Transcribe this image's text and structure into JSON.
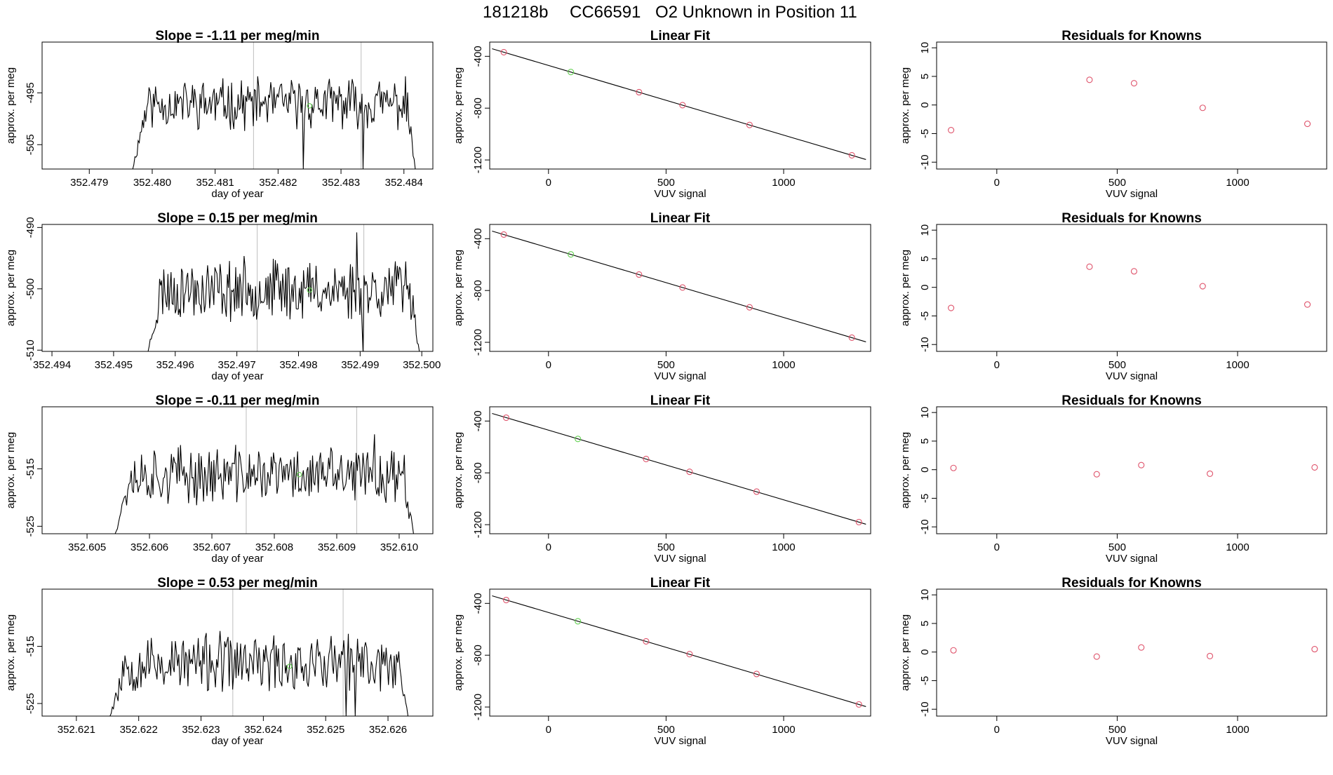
{
  "figure": {
    "title_parts": [
      "181218b",
      "CC66591",
      "O2 Unknown in Position  11"
    ]
  },
  "colors": {
    "trace": "#000000",
    "marker_red": "#DF536B",
    "marker_green": "#61D04F",
    "vline": "#BEBEBE",
    "frame": "#000000"
  },
  "chart_data": [
    {
      "type": "line",
      "row": 0,
      "col": 0,
      "title": "Slope =  -1.11  per meg/min",
      "xlabel": "day of year",
      "ylabel": "approx. per meg",
      "xlim": [
        352.47825,
        352.48446
      ],
      "ylim": [
        -509.7,
        -485.2
      ],
      "xticks": [
        352.479,
        352.48,
        352.481,
        352.482,
        352.483,
        352.484
      ],
      "xtick_labels": [
        "352.479",
        "352.480",
        "352.481",
        "352.482",
        "352.483",
        "352.484"
      ],
      "yticks": [
        -505,
        -495
      ],
      "ytick_labels": [
        "-505",
        "-495"
      ],
      "trace_x_range": [
        352.47969,
        352.48418
      ],
      "trace_base": -497.1,
      "trace_amp": 2.5,
      "trace_seed": 11,
      "vlines": [
        352.48161,
        352.48332
      ],
      "green_point": {
        "x": 352.4825,
        "y": -497.5
      },
      "dips": [
        {
          "x": 352.48175,
          "y": -497.6
        },
        {
          "x": 352.4824,
          "y": -509.7
        },
        {
          "x": 352.48335,
          "y": -509.7
        }
      ]
    },
    {
      "type": "scatter",
      "row": 0,
      "col": 1,
      "title": "Linear Fit",
      "xlabel": "VUV signal",
      "ylabel": "approx. per meg",
      "xlim": [
        -250,
        1370
      ],
      "ylim": [
        -1270,
        -290
      ],
      "xticks": [
        0,
        500,
        1000
      ],
      "xtick_labels": [
        "0",
        "500",
        "1000"
      ],
      "yticks": [
        -1200,
        -800,
        -400
      ],
      "ytick_labels": [
        "-1200",
        "-800",
        "-400"
      ],
      "fit_line": {
        "slope": -0.5378,
        "intercept": -470.4,
        "x_range": [
          -240,
          1350
        ]
      },
      "points_red": [
        [
          -190,
          -368
        ],
        [
          385,
          -677
        ],
        [
          570,
          -777
        ],
        [
          855,
          -930
        ],
        [
          1290,
          -1164
        ]
      ],
      "points_green": [
        [
          95,
          -521
        ]
      ]
    },
    {
      "type": "scatter",
      "row": 0,
      "col": 2,
      "title": "Residuals for Knowns",
      "xlabel": "VUV signal",
      "ylabel": "approx. per meg",
      "xlim": [
        -250,
        1370
      ],
      "ylim": [
        -11.2,
        11
      ],
      "xticks": [
        0,
        500,
        1000
      ],
      "xtick_labels": [
        "0",
        "500",
        "1000"
      ],
      "yticks": [
        -10,
        -5,
        0,
        5,
        10
      ],
      "ytick_labels": [
        "-10",
        "-5",
        "0",
        "5",
        "10"
      ],
      "points_red": [
        [
          -190,
          -4.4
        ],
        [
          385,
          4.4
        ],
        [
          570,
          3.8
        ],
        [
          855,
          -0.5
        ],
        [
          1290,
          -3.3
        ]
      ]
    },
    {
      "type": "line",
      "row": 1,
      "col": 0,
      "title": "Slope =  0.15  per meg/min",
      "xlabel": "day of year",
      "ylabel": "approx. per meg",
      "xlim": [
        352.49384,
        352.50018
      ],
      "ylim": [
        -510.2,
        -489.5
      ],
      "xticks": [
        352.494,
        352.495,
        352.496,
        352.497,
        352.498,
        352.499,
        352.5
      ],
      "xtick_labels": [
        "352.494",
        "352.495",
        "352.496",
        "352.497",
        "352.498",
        "352.499",
        "352.500"
      ],
      "yticks": [
        -510,
        -500,
        -490
      ],
      "ytick_labels": [
        "-510",
        "-500",
        "-490"
      ],
      "trace_x_range": [
        352.49556,
        352.49996
      ],
      "trace_base": -500.1,
      "trace_amp": 2.6,
      "trace_seed": 23,
      "vlines": [
        352.49733,
        352.49906
      ],
      "green_point": {
        "x": 352.49818,
        "y": -500.2
      },
      "dips": [
        {
          "x": 352.49895,
          "y": -490.8
        },
        {
          "x": 352.49905,
          "y": -510.2
        }
      ]
    },
    {
      "type": "scatter",
      "row": 1,
      "col": 1,
      "title": "Linear Fit",
      "xlabel": "VUV signal",
      "ylabel": "approx. per meg",
      "xlim": [
        -250,
        1370
      ],
      "ylim": [
        -1270,
        -290
      ],
      "xticks": [
        0,
        500,
        1000
      ],
      "xtick_labels": [
        "0",
        "500",
        "1000"
      ],
      "yticks": [
        -1200,
        -800,
        -400
      ],
      "ytick_labels": [
        "-1200",
        "-800",
        "-400"
      ],
      "fit_line": {
        "slope": -0.5378,
        "intercept": -470.4,
        "x_range": [
          -240,
          1350
        ]
      },
      "points_red": [
        [
          -190,
          -368
        ],
        [
          385,
          -677
        ],
        [
          570,
          -777
        ],
        [
          855,
          -930
        ],
        [
          1290,
          -1164
        ]
      ],
      "points_green": [
        [
          95,
          -521
        ]
      ]
    },
    {
      "type": "scatter",
      "row": 1,
      "col": 2,
      "title": "Residuals for Knowns",
      "xlabel": "VUV signal",
      "ylabel": "approx. per meg",
      "xlim": [
        -250,
        1370
      ],
      "ylim": [
        -11.2,
        11
      ],
      "xticks": [
        0,
        500,
        1000
      ],
      "xtick_labels": [
        "0",
        "500",
        "1000"
      ],
      "yticks": [
        -10,
        -5,
        0,
        5,
        10
      ],
      "ytick_labels": [
        "-10",
        "-5",
        "0",
        "5",
        "10"
      ],
      "points_red": [
        [
          -190,
          -3.6
        ],
        [
          385,
          3.6
        ],
        [
          570,
          2.8
        ],
        [
          855,
          0.2
        ],
        [
          1290,
          -3.0
        ]
      ]
    },
    {
      "type": "line",
      "row": 2,
      "col": 0,
      "title": "Slope =  -0.11  per meg/min",
      "xlabel": "day of year",
      "ylabel": "approx. per meg",
      "xlim": [
        352.60428,
        352.61054
      ],
      "ylim": [
        -526.3,
        -504.2
      ],
      "xticks": [
        352.605,
        352.606,
        352.607,
        352.608,
        352.609,
        352.61
      ],
      "xtick_labels": [
        "352.605",
        "352.606",
        "352.607",
        "352.608",
        "352.609",
        "352.610"
      ],
      "yticks": [
        -525,
        -515
      ],
      "ytick_labels": [
        "-525",
        "-515"
      ],
      "trace_x_range": [
        352.60545,
        352.61023
      ],
      "trace_base": -516.1,
      "trace_amp": 2.6,
      "trace_seed": 37,
      "vlines": [
        352.60755,
        352.60932
      ],
      "green_point": {
        "x": 352.6084,
        "y": -516.0
      },
      "dips": [
        {
          "x": 352.6093,
          "y": -520.5
        },
        {
          "x": 352.6096,
          "y": -509.0
        }
      ]
    },
    {
      "type": "scatter",
      "row": 2,
      "col": 1,
      "title": "Linear Fit",
      "xlabel": "VUV signal",
      "ylabel": "approx. per meg",
      "xlim": [
        -250,
        1370
      ],
      "ylim": [
        -1270,
        -290
      ],
      "xticks": [
        0,
        500,
        1000
      ],
      "xtick_labels": [
        "0",
        "500",
        "1000"
      ],
      "yticks": [
        -1200,
        -800,
        -400
      ],
      "ytick_labels": [
        "-1200",
        "-800",
        "-400"
      ],
      "fit_line": {
        "slope": -0.5378,
        "intercept": -470.4,
        "x_range": [
          -240,
          1350
        ]
      },
      "points_red": [
        [
          -180,
          -374
        ],
        [
          415,
          -693
        ],
        [
          600,
          -792
        ],
        [
          885,
          -945
        ],
        [
          1320,
          -1180
        ]
      ],
      "points_green": [
        [
          125,
          -538
        ]
      ]
    },
    {
      "type": "scatter",
      "row": 2,
      "col": 2,
      "title": "Residuals for Knowns",
      "xlabel": "VUV signal",
      "ylabel": "approx. per meg",
      "xlim": [
        -250,
        1370
      ],
      "ylim": [
        -11.2,
        11
      ],
      "xticks": [
        0,
        500,
        1000
      ],
      "xtick_labels": [
        "0",
        "500",
        "1000"
      ],
      "yticks": [
        -10,
        -5,
        0,
        5,
        10
      ],
      "ytick_labels": [
        "-10",
        "-5",
        "0",
        "5",
        "10"
      ],
      "points_red": [
        [
          -180,
          0.3
        ],
        [
          415,
          -0.8
        ],
        [
          600,
          0.8
        ],
        [
          885,
          -0.7
        ],
        [
          1320,
          0.4
        ]
      ]
    },
    {
      "type": "line",
      "row": 3,
      "col": 0,
      "title": "Slope =  0.53  per meg/min",
      "xlabel": "day of year",
      "ylabel": "approx. per meg",
      "xlim": [
        352.62045,
        352.62672
      ],
      "ylim": [
        -527.2,
        -505.0
      ],
      "xticks": [
        352.621,
        352.622,
        352.623,
        352.624,
        352.625,
        352.626
      ],
      "xtick_labels": [
        "352.621",
        "352.622",
        "352.623",
        "352.624",
        "352.625",
        "352.626"
      ],
      "yticks": [
        -525,
        -515
      ],
      "ytick_labels": [
        "-525",
        "-515"
      ],
      "trace_x_range": [
        352.62154,
        352.62632
      ],
      "trace_base": -518.0,
      "trace_amp": 2.7,
      "trace_seed": 53,
      "vlines": [
        352.62351,
        352.62528
      ],
      "green_point": {
        "x": 352.62442,
        "y": -518.5
      },
      "dips": [
        {
          "x": 352.62532,
          "y": -527.2
        },
        {
          "x": 352.62548,
          "y": -527.2
        }
      ]
    },
    {
      "type": "scatter",
      "row": 3,
      "col": 1,
      "title": "Linear Fit",
      "xlabel": "VUV signal",
      "ylabel": "approx. per meg",
      "xlim": [
        -250,
        1370
      ],
      "ylim": [
        -1270,
        -290
      ],
      "xticks": [
        0,
        500,
        1000
      ],
      "xtick_labels": [
        "0",
        "500",
        "1000"
      ],
      "yticks": [
        -1200,
        -800,
        -400
      ],
      "ytick_labels": [
        "-1200",
        "-800",
        "-400"
      ],
      "fit_line": {
        "slope": -0.5378,
        "intercept": -470.4,
        "x_range": [
          -240,
          1350
        ]
      },
      "points_red": [
        [
          -180,
          -374
        ],
        [
          415,
          -693
        ],
        [
          600,
          -792
        ],
        [
          885,
          -945
        ],
        [
          1320,
          -1180
        ]
      ],
      "points_green": [
        [
          125,
          -538
        ]
      ]
    },
    {
      "type": "scatter",
      "row": 3,
      "col": 2,
      "title": "Residuals for Knowns",
      "xlabel": "VUV signal",
      "ylabel": "approx. per meg",
      "xlim": [
        -250,
        1370
      ],
      "ylim": [
        -11.2,
        11
      ],
      "xticks": [
        0,
        500,
        1000
      ],
      "xtick_labels": [
        "0",
        "500",
        "1000"
      ],
      "yticks": [
        -10,
        -5,
        0,
        5,
        10
      ],
      "ytick_labels": [
        "-10",
        "-5",
        "0",
        "5",
        "10"
      ],
      "points_red": [
        [
          -180,
          0.3
        ],
        [
          415,
          -0.8
        ],
        [
          600,
          0.8
        ],
        [
          885,
          -0.7
        ],
        [
          1320,
          0.5
        ]
      ]
    }
  ]
}
